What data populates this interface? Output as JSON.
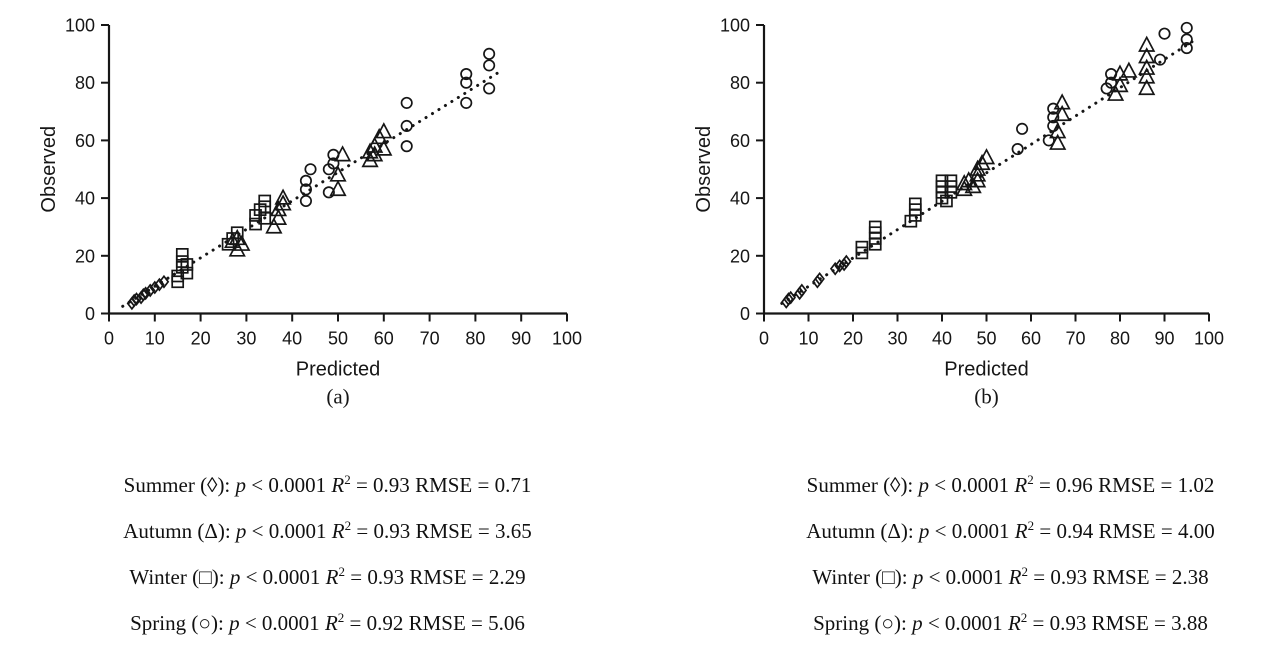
{
  "page": {
    "background": "#ffffff",
    "ink_color": "#161616"
  },
  "labels": {
    "p_var": "p",
    "lt": "<",
    "r_var": "R",
    "r_sup": "2",
    "eq": "=",
    "rmse": "RMSE"
  },
  "chart_data": [
    {
      "type": "scatter",
      "caption": "(a)",
      "xlabel": "Predicted",
      "ylabel": "Observed",
      "xlim": [
        0,
        100
      ],
      "ylim": [
        0,
        100
      ],
      "xticks": [
        0,
        10,
        20,
        30,
        40,
        50,
        60,
        70,
        80,
        90,
        100
      ],
      "yticks": [
        0,
        20,
        40,
        60,
        80,
        100
      ],
      "grid": false,
      "trendline": {
        "style": "dotted",
        "x": [
          3,
          86
        ],
        "y": [
          2.5,
          84.5
        ]
      },
      "series": [
        {
          "name": "Summer",
          "marker": "diamond",
          "symbol": "◊",
          "points": [
            [
              5,
              3.5
            ],
            [
              5.5,
              4.5
            ],
            [
              6,
              5
            ],
            [
              7,
              5.5
            ],
            [
              7.5,
              6.5
            ],
            [
              8,
              7
            ],
            [
              9,
              8
            ],
            [
              10,
              9
            ],
            [
              11,
              10
            ],
            [
              12,
              11
            ]
          ]
        },
        {
          "name": "Autumn",
          "marker": "triangle",
          "symbol": "Δ",
          "points": [
            [
              27,
              25
            ],
            [
              28,
              22
            ],
            [
              28,
              26
            ],
            [
              29,
              24
            ],
            [
              36,
              30
            ],
            [
              37,
              33
            ],
            [
              37,
              36
            ],
            [
              38,
              38
            ],
            [
              38,
              40
            ],
            [
              50,
              43
            ],
            [
              50,
              48
            ],
            [
              51,
              55
            ],
            [
              57,
              53
            ],
            [
              57,
              56
            ],
            [
              58,
              55
            ],
            [
              58,
              58
            ],
            [
              59,
              61
            ],
            [
              60,
              57
            ],
            [
              60,
              63
            ]
          ]
        },
        {
          "name": "Winter",
          "marker": "square",
          "symbol": "□",
          "points": [
            [
              15,
              11
            ],
            [
              15,
              13
            ],
            [
              16,
              16
            ],
            [
              16,
              18
            ],
            [
              16,
              20.5
            ],
            [
              17,
              14
            ],
            [
              17,
              17
            ],
            [
              26,
              24
            ],
            [
              27,
              26
            ],
            [
              28,
              28
            ],
            [
              32,
              31
            ],
            [
              32,
              34
            ],
            [
              33,
              36
            ],
            [
              34,
              33
            ],
            [
              34,
              37
            ],
            [
              34,
              39
            ]
          ]
        },
        {
          "name": "Spring",
          "marker": "circle",
          "symbol": "○",
          "points": [
            [
              43,
              39
            ],
            [
              43,
              43
            ],
            [
              43,
              46
            ],
            [
              44,
              50
            ],
            [
              48,
              42
            ],
            [
              48,
              50
            ],
            [
              49,
              52
            ],
            [
              49,
              55
            ],
            [
              65,
              58
            ],
            [
              65,
              65
            ],
            [
              65,
              73
            ],
            [
              78,
              73
            ],
            [
              78,
              80
            ],
            [
              78,
              83
            ],
            [
              83,
              78
            ],
            [
              83,
              86
            ],
            [
              83,
              90
            ]
          ]
        }
      ],
      "stats": [
        {
          "season": "Summer",
          "symbol": "◊",
          "p_value": "0.0001",
          "r2": "0.93",
          "rmse": "0.71"
        },
        {
          "season": "Autumn",
          "symbol": "Δ",
          "p_value": "0.0001",
          "r2": "0.93",
          "rmse": "3.65"
        },
        {
          "season": "Winter",
          "symbol": "□",
          "p_value": "0.0001",
          "r2": "0.93",
          "rmse": "2.29"
        },
        {
          "season": "Spring",
          "symbol": "○",
          "p_value": "0.0001",
          "r2": "0.92",
          "rmse": "5.06"
        }
      ]
    },
    {
      "type": "scatter",
      "caption": "(b)",
      "xlabel": "Predicted",
      "ylabel": "Observed",
      "xlim": [
        0,
        100
      ],
      "ylim": [
        0,
        100
      ],
      "xticks": [
        0,
        10,
        20,
        30,
        40,
        50,
        60,
        70,
        80,
        90,
        100
      ],
      "yticks": [
        0,
        20,
        40,
        60,
        80,
        100
      ],
      "grid": false,
      "trendline": {
        "style": "dotted",
        "x": [
          4,
          97
        ],
        "y": [
          3.5,
          95
        ]
      },
      "series": [
        {
          "name": "Summer",
          "marker": "diamond",
          "symbol": "◊",
          "points": [
            [
              5,
              4
            ],
            [
              5.5,
              5
            ],
            [
              6,
              5.5
            ],
            [
              8,
              7
            ],
            [
              8.5,
              8
            ],
            [
              12,
              11
            ],
            [
              12.5,
              12
            ],
            [
              16,
              15.5
            ],
            [
              17,
              16.5
            ],
            [
              18,
              17
            ],
            [
              18.5,
              18
            ]
          ]
        },
        {
          "name": "Autumn",
          "marker": "triangle",
          "symbol": "Δ",
          "points": [
            [
              45,
              43
            ],
            [
              45,
              45
            ],
            [
              46,
              46
            ],
            [
              47,
              44
            ],
            [
              48,
              46
            ],
            [
              48,
              48
            ],
            [
              48,
              50
            ],
            [
              49,
              52
            ],
            [
              50,
              54
            ],
            [
              66,
              59
            ],
            [
              66,
              63
            ],
            [
              67,
              69
            ],
            [
              67,
              73
            ],
            [
              79,
              76
            ],
            [
              80,
              79
            ],
            [
              80,
              83
            ],
            [
              82,
              84
            ],
            [
              86,
              78
            ],
            [
              86,
              82
            ],
            [
              86,
              85
            ],
            [
              86,
              89
            ],
            [
              86,
              93
            ]
          ]
        },
        {
          "name": "Winter",
          "marker": "square",
          "symbol": "□",
          "points": [
            [
              22,
              21
            ],
            [
              22,
              23
            ],
            [
              25,
              24
            ],
            [
              25,
              26
            ],
            [
              25,
              28
            ],
            [
              25,
              30
            ],
            [
              33,
              32
            ],
            [
              34,
              34
            ],
            [
              34,
              36
            ],
            [
              34,
              38
            ],
            [
              40,
              40
            ],
            [
              40,
              42
            ],
            [
              40,
              44
            ],
            [
              40,
              46
            ],
            [
              41,
              39
            ],
            [
              42,
              42
            ],
            [
              42,
              44
            ],
            [
              42,
              46
            ]
          ]
        },
        {
          "name": "Spring",
          "marker": "circle",
          "symbol": "○",
          "points": [
            [
              57,
              57
            ],
            [
              58,
              64
            ],
            [
              64,
              60
            ],
            [
              65,
              65
            ],
            [
              65,
              68
            ],
            [
              65,
              71
            ],
            [
              77,
              78
            ],
            [
              78,
              80
            ],
            [
              78,
              83
            ],
            [
              89,
              88
            ],
            [
              90,
              97
            ],
            [
              95,
              92
            ],
            [
              95,
              95
            ],
            [
              95,
              99
            ]
          ]
        }
      ],
      "stats": [
        {
          "season": "Summer",
          "symbol": "◊",
          "p_value": "0.0001",
          "r2": "0.96",
          "rmse": "1.02"
        },
        {
          "season": "Autumn",
          "symbol": "Δ",
          "p_value": "0.0001",
          "r2": "0.94",
          "rmse": "4.00"
        },
        {
          "season": "Winter",
          "symbol": "□",
          "p_value": "0.0001",
          "r2": "0.93",
          "rmse": "2.38"
        },
        {
          "season": "Spring",
          "symbol": "○",
          "p_value": "0.0001",
          "r2": "0.93",
          "rmse": "3.88"
        }
      ]
    }
  ]
}
